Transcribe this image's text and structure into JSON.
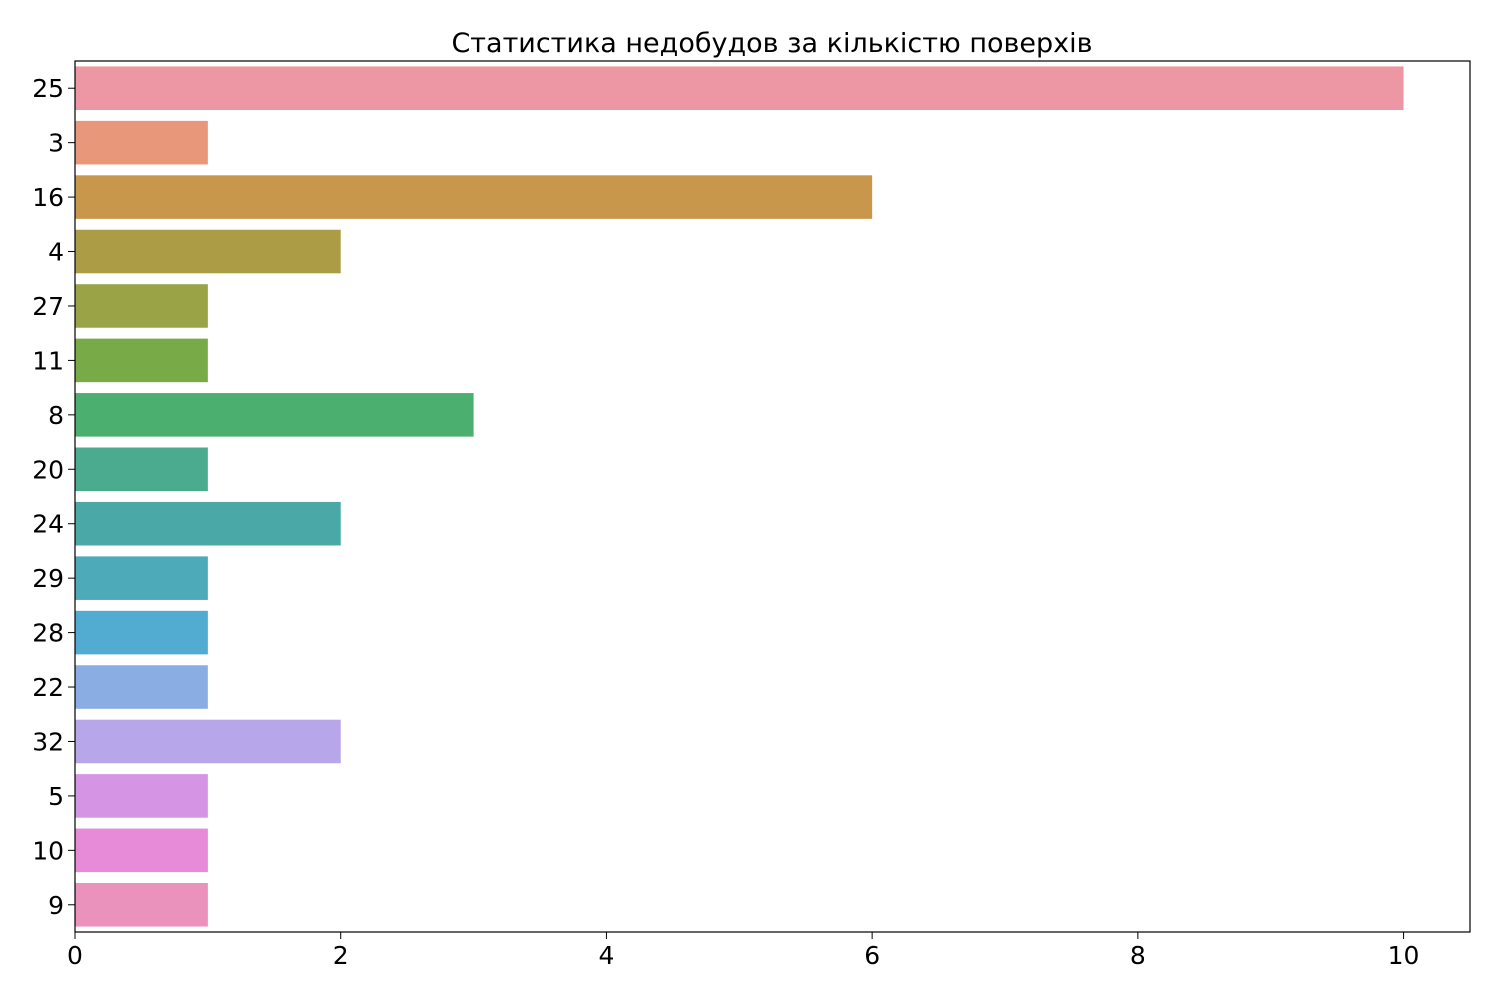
{
  "chart_data": {
    "type": "bar",
    "orientation": "horizontal",
    "title": "Статистика недобудов за кількістю поверхів",
    "xlabel": "",
    "ylabel": "",
    "categories": [
      "25",
      "3",
      "16",
      "4",
      "27",
      "11",
      "8",
      "20",
      "24",
      "29",
      "28",
      "22",
      "32",
      "5",
      "10",
      "9"
    ],
    "values": [
      10,
      1,
      6,
      2,
      1,
      1,
      3,
      1,
      2,
      1,
      1,
      1,
      2,
      1,
      1,
      1
    ],
    "colors": [
      "#ed97a4",
      "#e8977a",
      "#c9974b",
      "#ad9c46",
      "#9aa446",
      "#78ab48",
      "#4aaf6f",
      "#4aab8e",
      "#4aa9a6",
      "#4caab9",
      "#52abd0",
      "#8aaee4",
      "#b8a6eb",
      "#d694e4",
      "#e78ad7",
      "#ea91bc"
    ],
    "xlim": [
      0,
      10.5
    ],
    "xticks": [
      0,
      2,
      4,
      6,
      8,
      10
    ],
    "grid": false,
    "legend": "none"
  }
}
